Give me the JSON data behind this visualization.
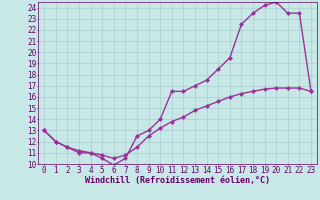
{
  "xlabel": "Windchill (Refroidissement éolien,°C)",
  "xlim": [
    -0.5,
    23.5
  ],
  "ylim": [
    10,
    24.5
  ],
  "xticks": [
    0,
    1,
    2,
    3,
    4,
    5,
    6,
    7,
    8,
    9,
    10,
    11,
    12,
    13,
    14,
    15,
    16,
    17,
    18,
    19,
    20,
    21,
    22,
    23
  ],
  "yticks": [
    10,
    11,
    12,
    13,
    14,
    15,
    16,
    17,
    18,
    19,
    20,
    21,
    22,
    23,
    24
  ],
  "line1_x": [
    0,
    1,
    2,
    3,
    4,
    5,
    6,
    7,
    8,
    9,
    10,
    11,
    12,
    13,
    14,
    15,
    16,
    17,
    18,
    19,
    20,
    21,
    22,
    23
  ],
  "line1_y": [
    13,
    12,
    11.5,
    11,
    11,
    10.5,
    9.9,
    10.5,
    12.5,
    13.0,
    14.0,
    16.5,
    16.5,
    17.0,
    17.5,
    18.5,
    19.5,
    22.5,
    23.5,
    24.2,
    24.5,
    23.5,
    23.5,
    16.5
  ],
  "line2_x": [
    0,
    1,
    2,
    3,
    4,
    5,
    6,
    7,
    8,
    9,
    10,
    11,
    12,
    13,
    14,
    15,
    16,
    17,
    18,
    19,
    20,
    21,
    22,
    23
  ],
  "line2_y": [
    13,
    12,
    11.5,
    11.2,
    11.0,
    10.8,
    10.5,
    10.8,
    11.5,
    12.5,
    13.2,
    13.8,
    14.2,
    14.8,
    15.2,
    15.6,
    16.0,
    16.3,
    16.5,
    16.7,
    16.8,
    16.8,
    16.8,
    16.5
  ],
  "line_color": "#993399",
  "bg_color": "#c8e8e8",
  "grid_color": "#aacccc",
  "tick_color": "#660066",
  "label_color": "#660066",
  "marker": "D",
  "markersize": 2,
  "linewidth": 1.0,
  "xlabel_fontsize": 6,
  "tick_fontsize": 5.5
}
